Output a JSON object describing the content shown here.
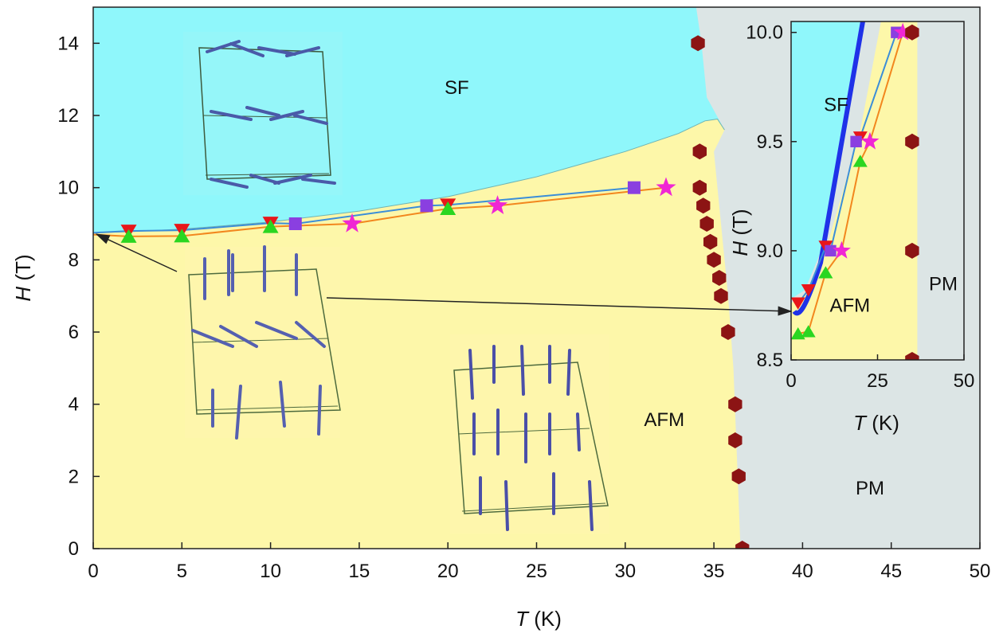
{
  "chart_data": [
    {
      "type": "scatter",
      "xlabel_var": "T",
      "xlabel_unit": "(K)",
      "ylabel_var": "H",
      "ylabel_unit": "(T)",
      "xlim": [
        0,
        50
      ],
      "ylim": [
        0,
        15
      ],
      "xticks": [
        "0",
        "5",
        "10",
        "15",
        "20",
        "25",
        "30",
        "35",
        "40",
        "45",
        "50"
      ],
      "yticks": [
        "0",
        "2",
        "4",
        "6",
        "8",
        "10",
        "12",
        "14"
      ],
      "regions": [
        {
          "label": "SF",
          "color": "#8ff7fb",
          "label_at": [
            20.5,
            12.6
          ]
        },
        {
          "label": "AFM",
          "color": "#fdf7a9",
          "label_at": [
            32.2,
            3.4
          ]
        },
        {
          "label": "PM",
          "color": "#dce5e5",
          "label_at": [
            43.8,
            1.5
          ]
        }
      ],
      "boundary_SF_AFM": {
        "x": [
          0,
          2,
          5,
          10,
          15,
          20,
          25,
          30,
          33,
          34.5,
          35.2,
          35.6
        ],
        "y": [
          8.75,
          8.78,
          8.85,
          9.05,
          9.35,
          9.75,
          10.3,
          11.0,
          11.5,
          11.85,
          11.9,
          11.6
        ]
      },
      "boundary_ordered_PM": {
        "x": [
          34.0,
          34.3,
          34.6,
          35.0,
          35.4,
          35.8,
          36.1,
          36.3,
          36.5
        ],
        "y": [
          15.0,
          14.0,
          12.5,
          11.0,
          9.0,
          7.0,
          5.0,
          2.5,
          0.0
        ]
      },
      "series": [
        {
          "marker": "triangle-down",
          "color": "#e8161a",
          "x": [
            2,
            5,
            10,
            20
          ],
          "y": [
            8.8,
            8.82,
            9.02,
            9.52
          ]
        },
        {
          "marker": "triangle-up",
          "color": "#2ad621",
          "x": [
            2,
            5,
            10,
            20
          ],
          "y": [
            8.65,
            8.66,
            8.92,
            9.42
          ]
        },
        {
          "marker": "square",
          "color": "#8a3fe0",
          "x": [
            11.4,
            18.8,
            30.5
          ],
          "y": [
            9.0,
            9.5,
            10.0
          ]
        },
        {
          "marker": "star",
          "color": "#f026d4",
          "x": [
            14.6,
            22.8,
            32.3
          ],
          "y": [
            9.0,
            9.5,
            10.0
          ]
        },
        {
          "marker": "hexagon",
          "color": "#8c1414",
          "x": [
            34.1,
            34.2,
            34.2,
            34.4,
            34.6,
            34.8,
            35.0,
            35.3,
            35.4,
            35.8,
            36.2,
            36.2,
            36.4,
            36.6
          ],
          "y": [
            14,
            11,
            10,
            9.5,
            9,
            8.5,
            8,
            7.5,
            7,
            6,
            4,
            3,
            2,
            0
          ]
        },
        {
          "marker": "line",
          "color": "#3b8ed8",
          "x": [
            0,
            2,
            5,
            10,
            11.4,
            18.8,
            20,
            30.5
          ],
          "y": [
            8.75,
            8.8,
            8.82,
            9.02,
            9.0,
            9.5,
            9.52,
            10.0
          ]
        },
        {
          "marker": "line",
          "color": "#f2871e",
          "x": [
            0,
            2,
            5,
            10,
            14.6,
            20,
            22.8,
            32.3
          ],
          "y": [
            8.7,
            8.65,
            8.66,
            8.92,
            9.0,
            9.42,
            9.5,
            10.0
          ]
        }
      ]
    },
    {
      "type": "scatter",
      "inset": true,
      "xlabel_var": "T",
      "xlabel_unit": "(K)",
      "ylabel_var": "H",
      "ylabel_unit": "(T)",
      "xlim": [
        0,
        50
      ],
      "ylim": [
        8.5,
        10.05
      ],
      "xticks": [
        "0",
        "25",
        "50"
      ],
      "yticks": [
        "8.5",
        "9.0",
        "9.5",
        "10.0"
      ],
      "yvals": [
        8.5,
        9.0,
        9.5,
        10.0
      ],
      "regions": [
        {
          "label": "SF",
          "color": "#8ff7fb",
          "label_at": [
            13,
            9.64
          ]
        },
        {
          "label": "AFM",
          "color": "#fdf7a9",
          "label_at": [
            17,
            8.72
          ]
        },
        {
          "label": "PM",
          "color": "#dce5e5",
          "label_at": [
            44,
            8.82
          ]
        }
      ],
      "series": [
        {
          "marker": "triangle-down",
          "color": "#e8161a",
          "x": [
            2,
            5,
            10,
            20
          ],
          "y": [
            8.76,
            8.82,
            9.02,
            9.52
          ]
        },
        {
          "marker": "triangle-up",
          "color": "#2ad621",
          "x": [
            2,
            5,
            10,
            20
          ],
          "y": [
            8.62,
            8.63,
            8.9,
            9.41
          ]
        },
        {
          "marker": "square",
          "color": "#8a3fe0",
          "x": [
            11.4,
            18.8,
            30.5
          ],
          "y": [
            9.0,
            9.5,
            10.0
          ]
        },
        {
          "marker": "star",
          "color": "#f026d4",
          "x": [
            14.6,
            22.8,
            32.3
          ],
          "y": [
            9.0,
            9.5,
            10.0
          ]
        },
        {
          "marker": "hexagon",
          "color": "#8c1414",
          "x": [
            35,
            35,
            35,
            35
          ],
          "y": [
            10.0,
            9.5,
            9.0,
            8.5
          ]
        }
      ]
    }
  ]
}
